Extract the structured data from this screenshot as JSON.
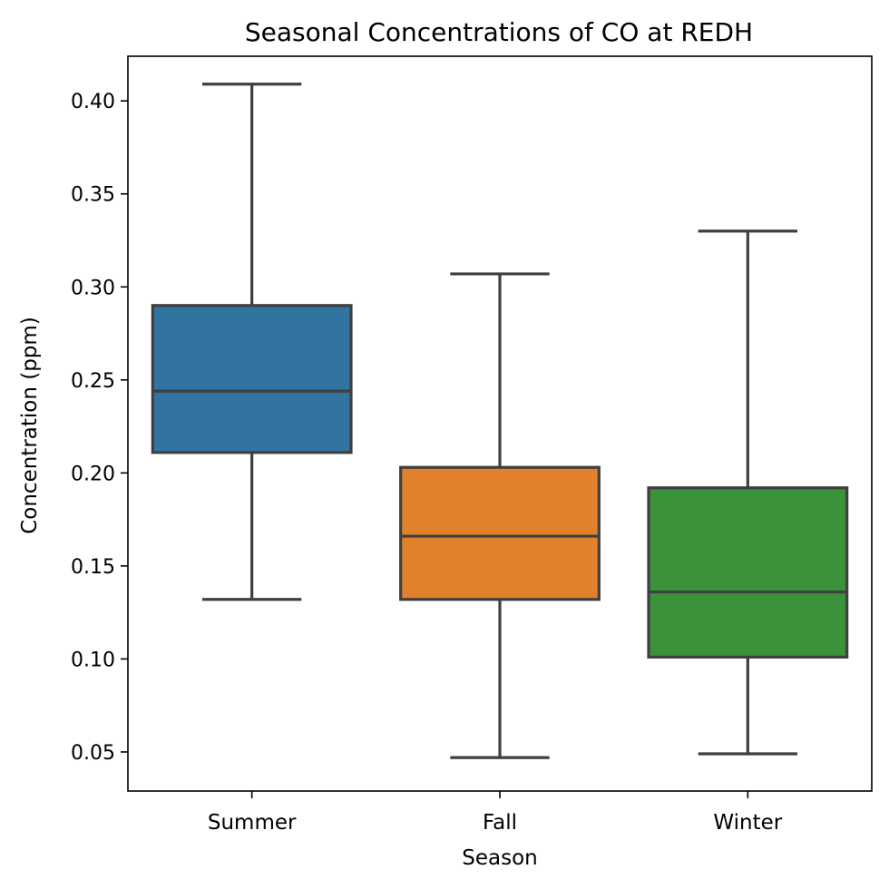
{
  "chart_data": {
    "type": "box",
    "title": "Seasonal Concentrations of CO at REDH",
    "xlabel": "Season",
    "ylabel": "Concentration (ppm)",
    "categories": [
      "Summer",
      "Fall",
      "Winter"
    ],
    "ylim": [
      0.029,
      0.424
    ],
    "yticks": [
      0.05,
      0.1,
      0.15,
      0.2,
      0.25,
      0.3,
      0.35,
      0.4
    ],
    "ytick_labels": [
      "0.05",
      "0.10",
      "0.15",
      "0.20",
      "0.25",
      "0.30",
      "0.35",
      "0.40"
    ],
    "grid": false,
    "boxes": [
      {
        "category": "Summer",
        "whisker_low": 0.132,
        "q1": 0.211,
        "median": 0.244,
        "q3": 0.29,
        "whisker_high": 0.409,
        "color": "#3274a1"
      },
      {
        "category": "Fall",
        "whisker_low": 0.047,
        "q1": 0.132,
        "median": 0.166,
        "q3": 0.203,
        "whisker_high": 0.307,
        "color": "#e1812c"
      },
      {
        "category": "Winter",
        "whisker_low": 0.049,
        "q1": 0.101,
        "median": 0.136,
        "q3": 0.192,
        "whisker_high": 0.33,
        "color": "#3a923a"
      }
    ],
    "line_color": "#3f3f3f"
  }
}
